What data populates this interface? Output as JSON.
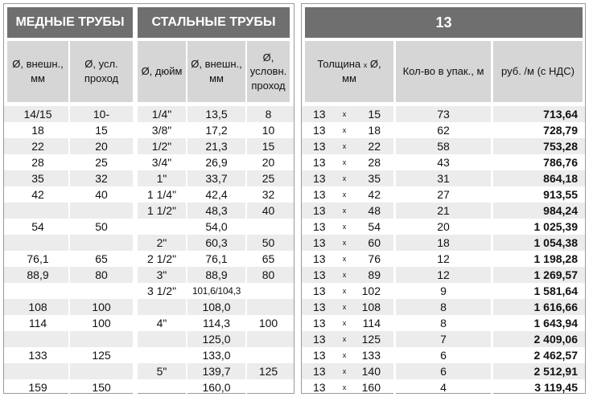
{
  "left": {
    "copper_title": "МЕДНЫЕ ТРУБЫ",
    "steel_title": "СТАЛЬНЫЕ ТРУБЫ",
    "copper_headers": [
      "Ø, внешн., мм",
      "Ø, усл. проход"
    ],
    "steel_headers": [
      "Ø, дюйм",
      "Ø, внешн., мм",
      "Ø, условн. проход"
    ],
    "rows": [
      {
        "cu_outer": "14/15",
        "cu_pass": "10-",
        "st_inch": "1/4\"",
        "st_outer": "13,5",
        "st_pass": "8"
      },
      {
        "cu_outer": "18",
        "cu_pass": "15",
        "st_inch": "3/8\"",
        "st_outer": "17,2",
        "st_pass": "10"
      },
      {
        "cu_outer": "22",
        "cu_pass": "20",
        "st_inch": "1/2\"",
        "st_outer": "21,3",
        "st_pass": "15"
      },
      {
        "cu_outer": "28",
        "cu_pass": "25",
        "st_inch": "3/4\"",
        "st_outer": "26,9",
        "st_pass": "20"
      },
      {
        "cu_outer": "35",
        "cu_pass": "32",
        "st_inch": "1\"",
        "st_outer": "33,7",
        "st_pass": "25"
      },
      {
        "cu_outer": "42",
        "cu_pass": "40",
        "st_inch": "1 1/4\"",
        "st_outer": "42,4",
        "st_pass": "32"
      },
      {
        "cu_outer": "",
        "cu_pass": "",
        "st_inch": "1 1/2\"",
        "st_outer": "48,3",
        "st_pass": "40"
      },
      {
        "cu_outer": "54",
        "cu_pass": "50",
        "st_inch": "",
        "st_outer": "54,0",
        "st_pass": ""
      },
      {
        "cu_outer": "",
        "cu_pass": "",
        "st_inch": "2\"",
        "st_outer": "60,3",
        "st_pass": "50"
      },
      {
        "cu_outer": "76,1",
        "cu_pass": "65",
        "st_inch": "2 1/2\"",
        "st_outer": "76,1",
        "st_pass": "65"
      },
      {
        "cu_outer": "88,9",
        "cu_pass": "80",
        "st_inch": "3\"",
        "st_outer": "88,9",
        "st_pass": "80"
      },
      {
        "cu_outer": "",
        "cu_pass": "",
        "st_inch": "3 1/2\"",
        "st_outer": "101,6/104,3",
        "st_pass": ""
      },
      {
        "cu_outer": "108",
        "cu_pass": "100",
        "st_inch": "",
        "st_outer": "108,0",
        "st_pass": ""
      },
      {
        "cu_outer": "114",
        "cu_pass": "100",
        "st_inch": "4\"",
        "st_outer": "114,3",
        "st_pass": "100"
      },
      {
        "cu_outer": "",
        "cu_pass": "",
        "st_inch": "",
        "st_outer": "125,0",
        "st_pass": ""
      },
      {
        "cu_outer": "133",
        "cu_pass": "125",
        "st_inch": "",
        "st_outer": "133,0",
        "st_pass": ""
      },
      {
        "cu_outer": "",
        "cu_pass": "",
        "st_inch": "5\"",
        "st_outer": "139,7",
        "st_pass": "125"
      },
      {
        "cu_outer": "159",
        "cu_pass": "150",
        "st_inch": "",
        "st_outer": "160,0",
        "st_pass": ""
      }
    ]
  },
  "right": {
    "title": "13",
    "headers": {
      "thickness": "Толщина",
      "x": "x",
      "diam": "Ø,",
      "unit": "мм",
      "qty": "Кол-во в упак., м",
      "price": "руб. /м (с НДС)"
    },
    "rows": [
      {
        "t": "13",
        "x": "x",
        "d": "15",
        "q": "73",
        "p": "713,64"
      },
      {
        "t": "13",
        "x": "x",
        "d": "18",
        "q": "62",
        "p": "728,79"
      },
      {
        "t": "13",
        "x": "x",
        "d": "22",
        "q": "58",
        "p": "753,28"
      },
      {
        "t": "13",
        "x": "x",
        "d": "28",
        "q": "43",
        "p": "786,76"
      },
      {
        "t": "13",
        "x": "x",
        "d": "35",
        "q": "31",
        "p": "864,18"
      },
      {
        "t": "13",
        "x": "x",
        "d": "42",
        "q": "27",
        "p": "913,55"
      },
      {
        "t": "13",
        "x": "x",
        "d": "48",
        "q": "21",
        "p": "984,24"
      },
      {
        "t": "13",
        "x": "x",
        "d": "54",
        "q": "20",
        "p": "1 025,39"
      },
      {
        "t": "13",
        "x": "x",
        "d": "60",
        "q": "18",
        "p": "1 054,38"
      },
      {
        "t": "13",
        "x": "x",
        "d": "76",
        "q": "12",
        "p": "1 198,28"
      },
      {
        "t": "13",
        "x": "x",
        "d": "89",
        "q": "12",
        "p": "1 269,57"
      },
      {
        "t": "13",
        "x": "x",
        "d": "102",
        "q": "9",
        "p": "1 581,64"
      },
      {
        "t": "13",
        "x": "x",
        "d": "108",
        "q": "8",
        "p": "1 616,66"
      },
      {
        "t": "13",
        "x": "x",
        "d": "114",
        "q": "8",
        "p": "1 643,94"
      },
      {
        "t": "13",
        "x": "x",
        "d": "125",
        "q": "7",
        "p": "2 409,06"
      },
      {
        "t": "13",
        "x": "x",
        "d": "133",
        "q": "6",
        "p": "2 462,57"
      },
      {
        "t": "13",
        "x": "x",
        "d": "140",
        "q": "6",
        "p": "2 512,91"
      },
      {
        "t": "13",
        "x": "x",
        "d": "160",
        "q": "4",
        "p": "3 119,45"
      }
    ]
  },
  "colors": {
    "header_bg": "#6f6f70",
    "subheader_bg": "#d6d6d7",
    "row_shade": "#ececed"
  }
}
